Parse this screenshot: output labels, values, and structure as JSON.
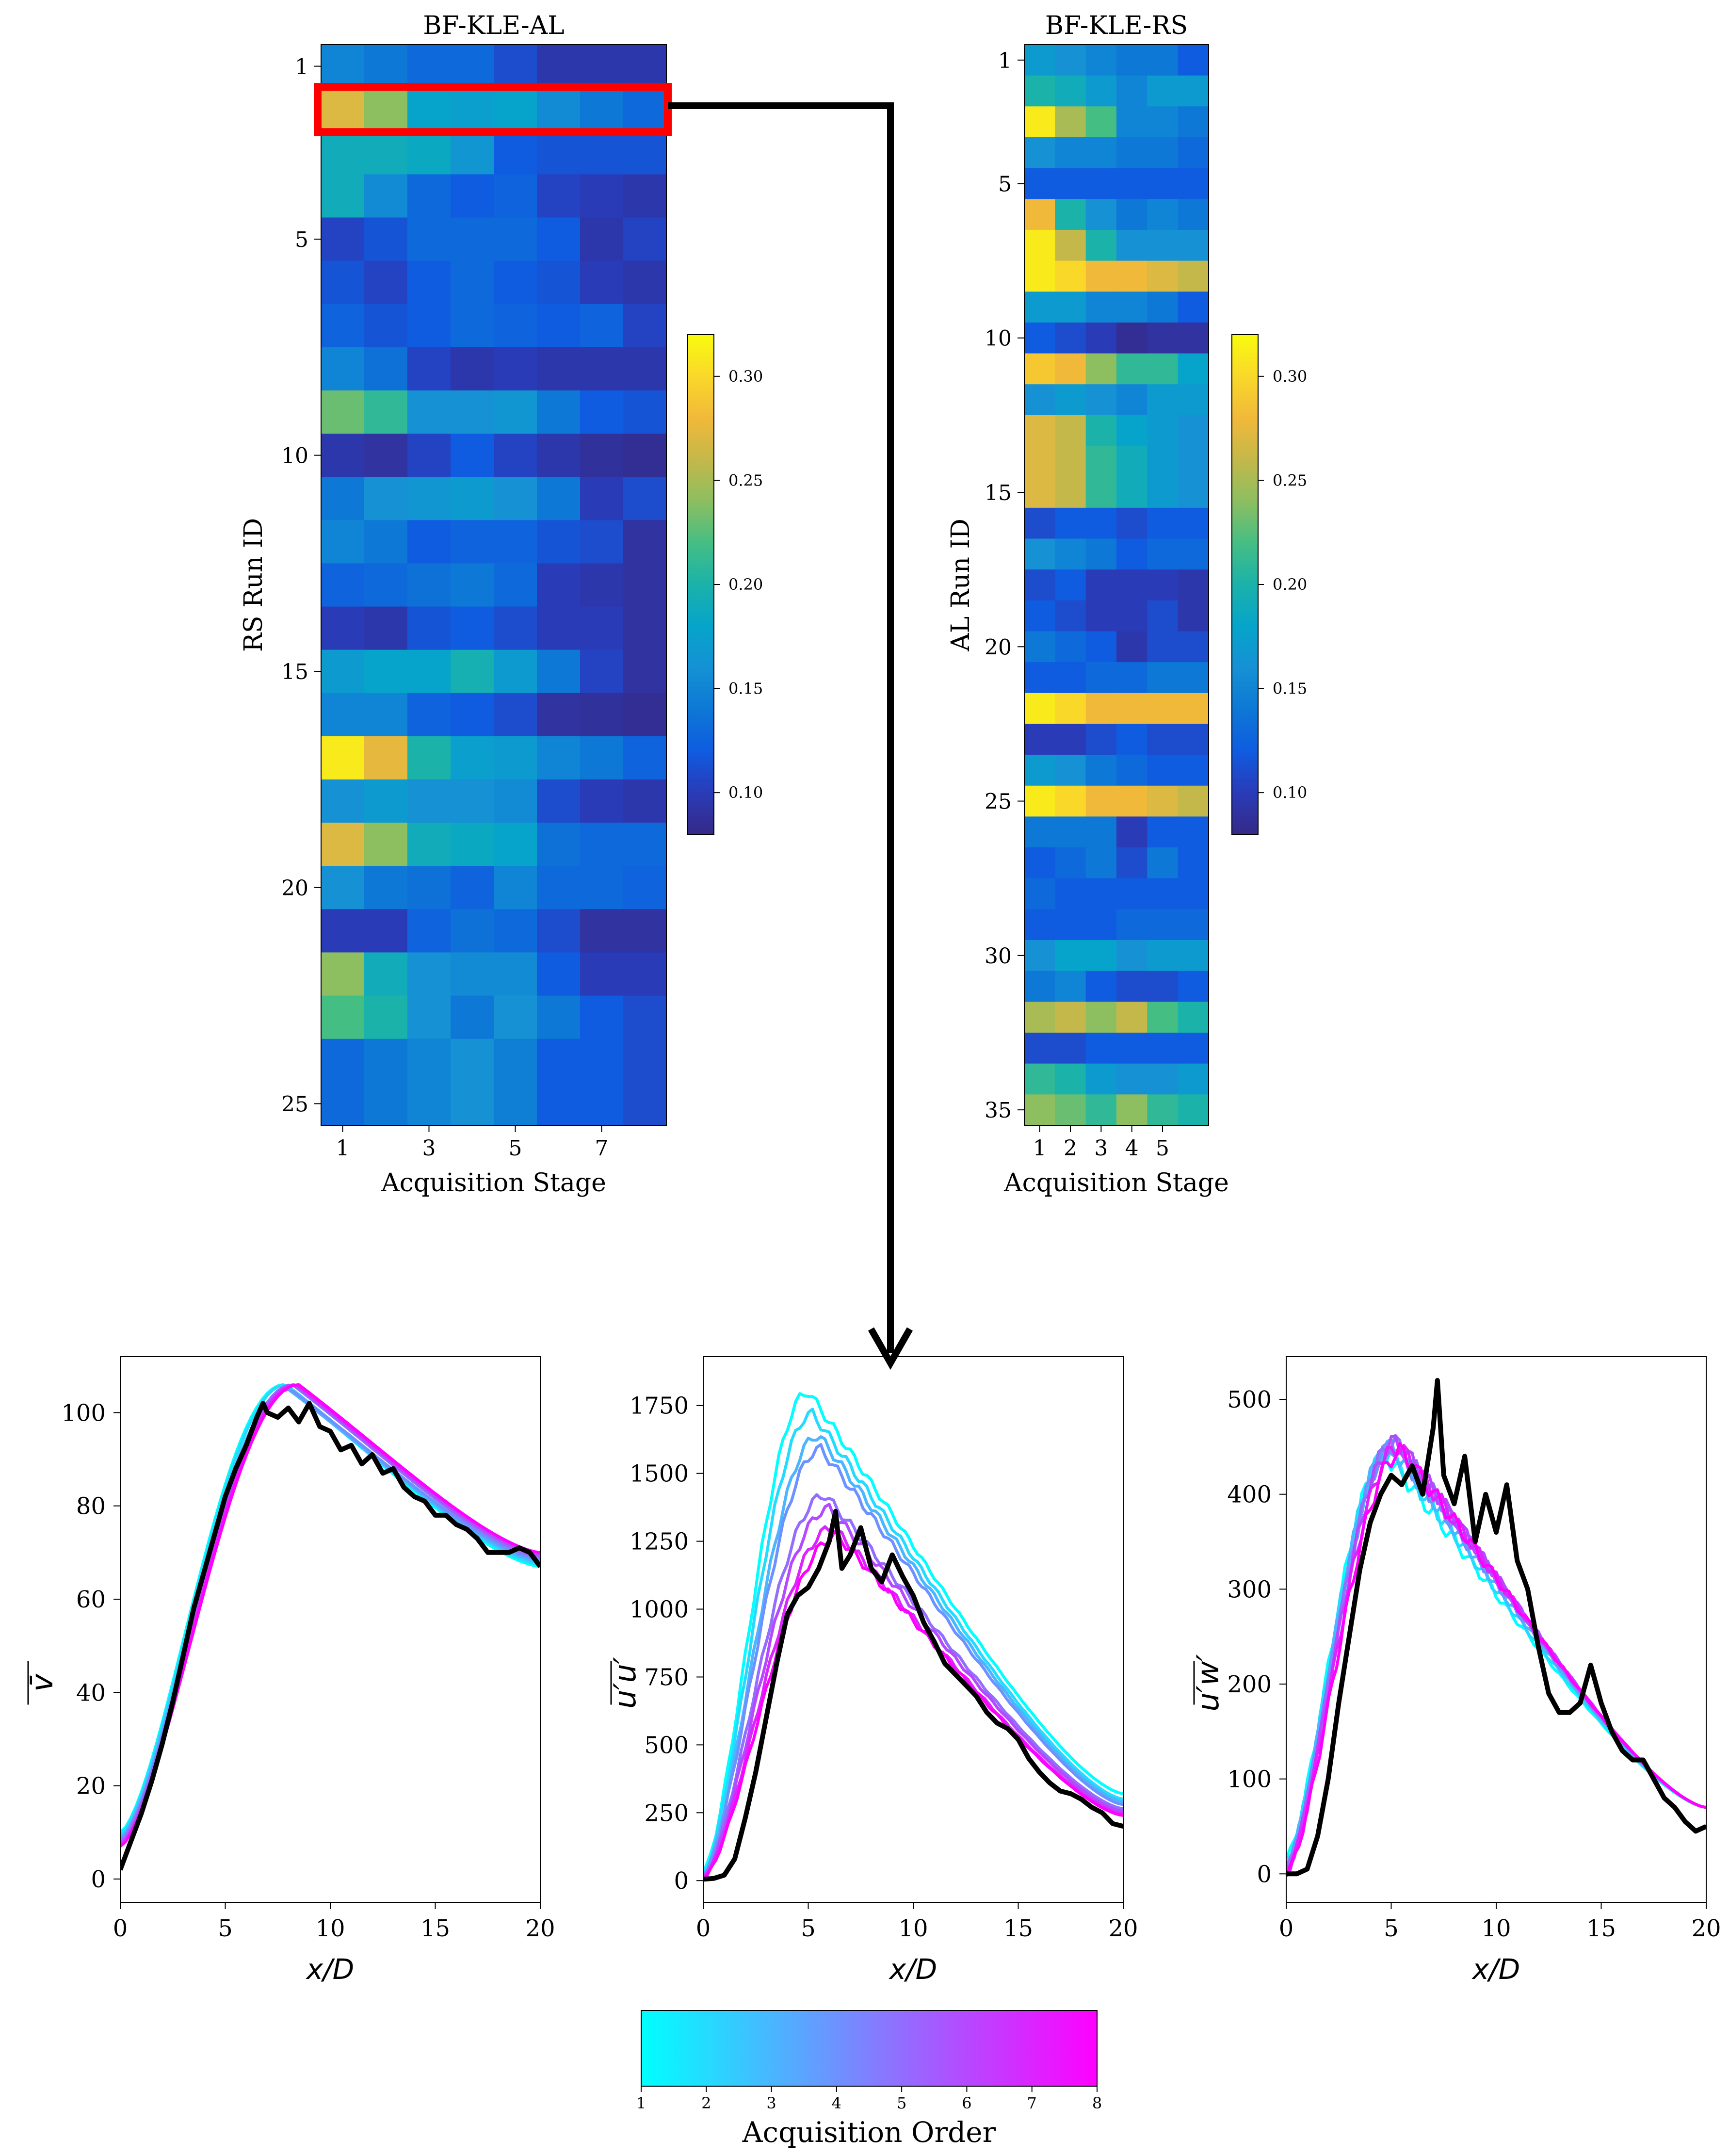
{
  "colors": {
    "viridis_cmap": [
      "#352a87",
      "#2a3bb8",
      "#0f5ce0",
      "#0d78d5",
      "#1591d4",
      "#06a4ca",
      "#1bb2aa",
      "#45be84",
      "#8dbe60",
      "#c4b84a",
      "#f1b93a",
      "#f9d82a",
      "#f9fb0e"
    ],
    "order_cmap": [
      "#00ffff",
      "#ff00ff"
    ],
    "truth_line": "#000000",
    "highlight": "#ff0000"
  },
  "chart_data": [
    {
      "type": "heatmap",
      "id": "bf-kle-al",
      "title": "BF-KLE-AL",
      "xlabel": "Acquisition Stage",
      "ylabel": "RS Run ID",
      "rows": 25,
      "cols": 8,
      "xticks": [
        "1",
        "3",
        "5",
        "7"
      ],
      "xtick_cols": [
        1,
        3,
        5,
        7
      ],
      "yticks": [
        "1",
        "5",
        "10",
        "15",
        "20",
        "25"
      ],
      "ytick_rows": [
        1,
        5,
        10,
        15,
        20,
        25
      ],
      "clim": [
        0.08,
        0.32
      ],
      "colorbar_ticks": [
        "0.10",
        "0.15",
        "0.20",
        "0.25",
        "0.30"
      ],
      "colorbar_values": [
        0.1,
        0.15,
        0.2,
        0.25,
        0.3
      ],
      "highlight_row": 2,
      "values": [
        [
          0.15,
          0.14,
          0.13,
          0.13,
          0.11,
          0.095,
          0.095,
          0.095
        ],
        [
          0.27,
          0.24,
          0.18,
          0.175,
          0.18,
          0.155,
          0.14,
          0.13
        ],
        [
          0.19,
          0.19,
          0.185,
          0.165,
          0.12,
          0.115,
          0.115,
          0.115
        ],
        [
          0.19,
          0.155,
          0.13,
          0.12,
          0.125,
          0.105,
          0.1,
          0.095
        ],
        [
          0.105,
          0.115,
          0.13,
          0.13,
          0.13,
          0.12,
          0.095,
          0.105
        ],
        [
          0.115,
          0.105,
          0.12,
          0.13,
          0.12,
          0.115,
          0.1,
          0.095
        ],
        [
          0.125,
          0.115,
          0.12,
          0.13,
          0.125,
          0.12,
          0.125,
          0.105
        ],
        [
          0.15,
          0.135,
          0.105,
          0.095,
          0.1,
          0.095,
          0.095,
          0.095
        ],
        [
          0.23,
          0.21,
          0.16,
          0.16,
          0.165,
          0.14,
          0.12,
          0.115
        ],
        [
          0.095,
          0.09,
          0.105,
          0.12,
          0.105,
          0.095,
          0.088,
          0.085
        ],
        [
          0.14,
          0.16,
          0.165,
          0.17,
          0.16,
          0.14,
          0.1,
          0.11
        ],
        [
          0.15,
          0.14,
          0.12,
          0.125,
          0.125,
          0.115,
          0.11,
          0.09
        ],
        [
          0.125,
          0.13,
          0.135,
          0.14,
          0.13,
          0.1,
          0.095,
          0.09
        ],
        [
          0.1,
          0.095,
          0.115,
          0.12,
          0.11,
          0.1,
          0.1,
          0.09
        ],
        [
          0.17,
          0.18,
          0.18,
          0.195,
          0.17,
          0.14,
          0.105,
          0.09
        ],
        [
          0.15,
          0.15,
          0.125,
          0.12,
          0.11,
          0.09,
          0.088,
          0.085
        ],
        [
          0.31,
          0.275,
          0.2,
          0.175,
          0.17,
          0.15,
          0.14,
          0.125
        ],
        [
          0.16,
          0.17,
          0.16,
          0.16,
          0.155,
          0.11,
          0.1,
          0.095
        ],
        [
          0.27,
          0.24,
          0.19,
          0.185,
          0.18,
          0.135,
          0.13,
          0.13
        ],
        [
          0.16,
          0.14,
          0.135,
          0.125,
          0.15,
          0.13,
          0.13,
          0.125
        ],
        [
          0.1,
          0.1,
          0.125,
          0.135,
          0.13,
          0.11,
          0.09,
          0.09
        ],
        [
          0.24,
          0.19,
          0.16,
          0.155,
          0.155,
          0.12,
          0.1,
          0.1
        ],
        [
          0.22,
          0.2,
          0.16,
          0.14,
          0.16,
          0.14,
          0.12,
          0.11
        ],
        [
          0.13,
          0.14,
          0.15,
          0.16,
          0.145,
          0.12,
          0.12,
          0.11
        ],
        [
          0.13,
          0.14,
          0.15,
          0.16,
          0.145,
          0.12,
          0.12,
          0.11
        ]
      ]
    },
    {
      "type": "heatmap",
      "id": "bf-kle-rs",
      "title": "BF-KLE-RS",
      "xlabel": "Acquisition Stage",
      "ylabel": "AL Run ID",
      "rows": 35,
      "cols": 6,
      "xticks": [
        "1",
        "2",
        "3",
        "4",
        "5"
      ],
      "xtick_cols": [
        1,
        2,
        3,
        4,
        5
      ],
      "yticks": [
        "1",
        "5",
        "10",
        "15",
        "20",
        "25",
        "30",
        "35"
      ],
      "ytick_rows": [
        1,
        5,
        10,
        15,
        20,
        25,
        30,
        35
      ],
      "clim": [
        0.08,
        0.32
      ],
      "colorbar_ticks": [
        "0.10",
        "0.15",
        "0.20",
        "0.25",
        "0.30"
      ],
      "colorbar_values": [
        0.1,
        0.15,
        0.2,
        0.25,
        0.3
      ],
      "values": [
        [
          0.17,
          0.16,
          0.15,
          0.14,
          0.14,
          0.12
        ],
        [
          0.2,
          0.19,
          0.17,
          0.15,
          0.17,
          0.17
        ],
        [
          0.31,
          0.25,
          0.22,
          0.15,
          0.15,
          0.14
        ],
        [
          0.16,
          0.15,
          0.15,
          0.14,
          0.14,
          0.13
        ],
        [
          0.12,
          0.12,
          0.12,
          0.12,
          0.12,
          0.12
        ],
        [
          0.28,
          0.2,
          0.16,
          0.14,
          0.15,
          0.14
        ],
        [
          0.31,
          0.26,
          0.2,
          0.16,
          0.16,
          0.16
        ],
        [
          0.31,
          0.3,
          0.28,
          0.28,
          0.27,
          0.26
        ],
        [
          0.17,
          0.17,
          0.15,
          0.15,
          0.14,
          0.12
        ],
        [
          0.12,
          0.11,
          0.1,
          0.085,
          0.09,
          0.09
        ],
        [
          0.29,
          0.28,
          0.24,
          0.21,
          0.21,
          0.18
        ],
        [
          0.16,
          0.17,
          0.16,
          0.15,
          0.17,
          0.17
        ],
        [
          0.27,
          0.26,
          0.2,
          0.18,
          0.17,
          0.16
        ],
        [
          0.27,
          0.26,
          0.21,
          0.19,
          0.17,
          0.16
        ],
        [
          0.27,
          0.26,
          0.21,
          0.19,
          0.17,
          0.16
        ],
        [
          0.11,
          0.12,
          0.12,
          0.11,
          0.12,
          0.12
        ],
        [
          0.16,
          0.15,
          0.14,
          0.12,
          0.13,
          0.13
        ],
        [
          0.11,
          0.12,
          0.1,
          0.1,
          0.1,
          0.095
        ],
        [
          0.12,
          0.11,
          0.1,
          0.1,
          0.11,
          0.095
        ],
        [
          0.14,
          0.13,
          0.12,
          0.095,
          0.11,
          0.11
        ],
        [
          0.12,
          0.12,
          0.13,
          0.13,
          0.14,
          0.14
        ],
        [
          0.31,
          0.3,
          0.28,
          0.28,
          0.28,
          0.28
        ],
        [
          0.1,
          0.1,
          0.11,
          0.12,
          0.11,
          0.11
        ],
        [
          0.17,
          0.16,
          0.14,
          0.13,
          0.12,
          0.12
        ],
        [
          0.31,
          0.3,
          0.28,
          0.28,
          0.27,
          0.26
        ],
        [
          0.14,
          0.14,
          0.14,
          0.1,
          0.12,
          0.12
        ],
        [
          0.12,
          0.13,
          0.14,
          0.11,
          0.14,
          0.12
        ],
        [
          0.13,
          0.12,
          0.12,
          0.12,
          0.12,
          0.12
        ],
        [
          0.12,
          0.12,
          0.12,
          0.13,
          0.13,
          0.13
        ],
        [
          0.16,
          0.18,
          0.18,
          0.16,
          0.17,
          0.17
        ],
        [
          0.14,
          0.15,
          0.12,
          0.11,
          0.11,
          0.12
        ],
        [
          0.25,
          0.26,
          0.24,
          0.26,
          0.22,
          0.2
        ],
        [
          0.11,
          0.11,
          0.12,
          0.12,
          0.12,
          0.12
        ],
        [
          0.21,
          0.2,
          0.17,
          0.16,
          0.16,
          0.17
        ],
        [
          0.24,
          0.23,
          0.21,
          0.24,
          0.21,
          0.2
        ]
      ]
    },
    {
      "type": "line",
      "id": "vbar",
      "ylabel": "v̄",
      "xlabel": "x/D",
      "xlim": [
        0,
        20
      ],
      "ylim": [
        -5,
        112
      ],
      "xticks": [
        0,
        5,
        10,
        15,
        20
      ],
      "yticks": [
        0,
        20,
        40,
        60,
        80,
        100
      ],
      "smooth_step": 0.25,
      "series_count": 8,
      "series_peak_x": [
        7.8,
        7.9,
        8.0,
        8.1,
        8.2,
        8.3,
        8.4,
        8.5
      ],
      "series_peak_y": [
        106,
        106,
        105,
        105,
        106,
        106,
        106,
        106
      ],
      "series_start_y": [
        10,
        9.5,
        9,
        8.5,
        8,
        7.5,
        7,
        7
      ],
      "series_end_y": [
        67,
        67.5,
        68,
        68.5,
        69,
        69.5,
        70,
        70
      ],
      "truth": [
        [
          0,
          2
        ],
        [
          0.5,
          8
        ],
        [
          1,
          14
        ],
        [
          1.5,
          21
        ],
        [
          2,
          29
        ],
        [
          2.5,
          38
        ],
        [
          3,
          48
        ],
        [
          3.5,
          58
        ],
        [
          4,
          66
        ],
        [
          4.5,
          74
        ],
        [
          5,
          82
        ],
        [
          5.5,
          88
        ],
        [
          6,
          93
        ],
        [
          6.5,
          99
        ],
        [
          6.8,
          102
        ],
        [
          7,
          100
        ],
        [
          7.5,
          99
        ],
        [
          8,
          101
        ],
        [
          8.5,
          98
        ],
        [
          9,
          102
        ],
        [
          9.5,
          97
        ],
        [
          10,
          96
        ],
        [
          10.5,
          92
        ],
        [
          11,
          93
        ],
        [
          11.5,
          89
        ],
        [
          12,
          91
        ],
        [
          12.5,
          87
        ],
        [
          13,
          88
        ],
        [
          13.5,
          84
        ],
        [
          14,
          82
        ],
        [
          14.5,
          81
        ],
        [
          15,
          78
        ],
        [
          15.5,
          78
        ],
        [
          16,
          76
        ],
        [
          16.5,
          75
        ],
        [
          17,
          73
        ],
        [
          17.5,
          70
        ],
        [
          18,
          70
        ],
        [
          18.5,
          70
        ],
        [
          19,
          71
        ],
        [
          19.5,
          70
        ],
        [
          20,
          67
        ]
      ]
    },
    {
      "type": "line",
      "id": "uu",
      "ylabel": "u′u′",
      "xlabel": "x/D",
      "xlim": [
        0,
        20
      ],
      "ylim": [
        -80,
        1930
      ],
      "xticks": [
        0,
        5,
        10,
        15,
        20
      ],
      "yticks": [
        0,
        250,
        500,
        750,
        1000,
        1250,
        1500,
        1750
      ],
      "smooth_step": 0.2,
      "series_count": 8,
      "series_peak_x": [
        5.0,
        5.2,
        5.5,
        5.6,
        5.8,
        6.0,
        6.2,
        6.4
      ],
      "series_peak_y": [
        1800,
        1720,
        1640,
        1590,
        1420,
        1370,
        1300,
        1270
      ],
      "series_start_y": [
        30,
        25,
        20,
        18,
        15,
        12,
        10,
        8
      ],
      "series_end_y": [
        320,
        300,
        290,
        280,
        265,
        255,
        245,
        240
      ],
      "truth": [
        [
          0,
          5
        ],
        [
          0.5,
          8
        ],
        [
          1,
          20
        ],
        [
          1.5,
          80
        ],
        [
          2,
          230
        ],
        [
          2.5,
          400
        ],
        [
          3,
          600
        ],
        [
          3.5,
          800
        ],
        [
          4,
          980
        ],
        [
          4.5,
          1050
        ],
        [
          5,
          1080
        ],
        [
          5.5,
          1150
        ],
        [
          6,
          1250
        ],
        [
          6.3,
          1360
        ],
        [
          6.6,
          1150
        ],
        [
          7,
          1200
        ],
        [
          7.5,
          1300
        ],
        [
          8,
          1150
        ],
        [
          8.5,
          1100
        ],
        [
          9,
          1200
        ],
        [
          9.5,
          1120
        ],
        [
          10,
          1050
        ],
        [
          10.5,
          950
        ],
        [
          11,
          880
        ],
        [
          11.5,
          800
        ],
        [
          12,
          760
        ],
        [
          12.5,
          720
        ],
        [
          13,
          680
        ],
        [
          13.5,
          620
        ],
        [
          14,
          580
        ],
        [
          14.5,
          560
        ],
        [
          15,
          520
        ],
        [
          15.5,
          450
        ],
        [
          16,
          400
        ],
        [
          16.5,
          360
        ],
        [
          17,
          330
        ],
        [
          17.5,
          320
        ],
        [
          18,
          300
        ],
        [
          18.5,
          270
        ],
        [
          19,
          250
        ],
        [
          19.5,
          210
        ],
        [
          20,
          200
        ]
      ]
    },
    {
      "type": "line",
      "id": "uw",
      "ylabel": "u′w′",
      "xlabel": "x/D",
      "xlim": [
        0,
        20
      ],
      "ylim": [
        -30,
        545
      ],
      "xticks": [
        0,
        5,
        10,
        15,
        20
      ],
      "yticks": [
        0,
        100,
        200,
        300,
        400,
        500
      ],
      "smooth_step": 0.2,
      "series_count": 8,
      "series_peak_x": [
        4.8,
        4.9,
        5.0,
        5.1,
        5.2,
        5.3,
        5.4,
        5.5
      ],
      "series_peak_y": [
        440,
        445,
        450,
        450,
        455,
        455,
        450,
        445
      ],
      "series_start_y": [
        15,
        12,
        10,
        8,
        6,
        4,
        2,
        0
      ],
      "series_end_y": [
        70,
        70,
        70,
        70,
        70,
        70,
        70,
        70
      ],
      "truth": [
        [
          0,
          0
        ],
        [
          0.5,
          0
        ],
        [
          1,
          5
        ],
        [
          1.5,
          40
        ],
        [
          2,
          100
        ],
        [
          2.5,
          180
        ],
        [
          3,
          250
        ],
        [
          3.5,
          320
        ],
        [
          4,
          370
        ],
        [
          4.5,
          400
        ],
        [
          5,
          420
        ],
        [
          5.5,
          410
        ],
        [
          6,
          430
        ],
        [
          6.5,
          400
        ],
        [
          7,
          470
        ],
        [
          7.2,
          520
        ],
        [
          7.5,
          420
        ],
        [
          8,
          390
        ],
        [
          8.5,
          440
        ],
        [
          9,
          350
        ],
        [
          9.5,
          400
        ],
        [
          10,
          360
        ],
        [
          10.5,
          410
        ],
        [
          11,
          330
        ],
        [
          11.5,
          300
        ],
        [
          12,
          240
        ],
        [
          12.5,
          190
        ],
        [
          13,
          170
        ],
        [
          13.5,
          170
        ],
        [
          14,
          180
        ],
        [
          14.5,
          220
        ],
        [
          15,
          180
        ],
        [
          15.5,
          150
        ],
        [
          16,
          130
        ],
        [
          16.5,
          120
        ],
        [
          17,
          120
        ],
        [
          17.5,
          100
        ],
        [
          18,
          80
        ],
        [
          18.5,
          70
        ],
        [
          19,
          55
        ],
        [
          19.5,
          45
        ],
        [
          20,
          50
        ]
      ]
    }
  ],
  "order_colorbar": {
    "label": "Acquisition Order",
    "ticks": [
      "1",
      "2",
      "3",
      "4",
      "5",
      "6",
      "7",
      "8"
    ]
  }
}
